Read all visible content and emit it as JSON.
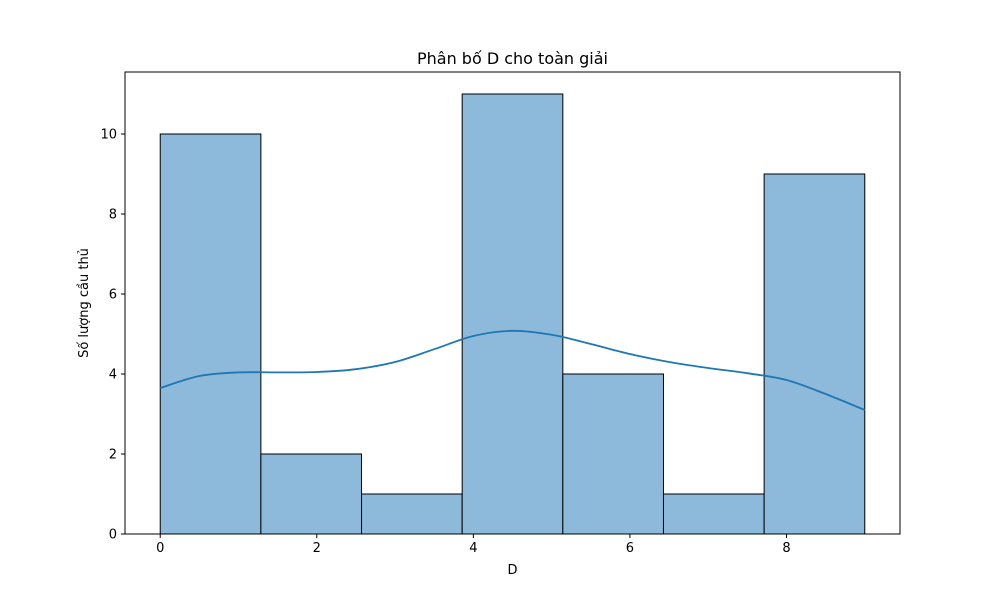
{
  "chart_data": {
    "type": "bar",
    "title": "Phân bố D cho toàn giải",
    "xlabel": "D",
    "ylabel": "Số lượng cầu thủ",
    "xlim": [
      -0.45,
      9.45
    ],
    "ylim": [
      0,
      11.55
    ],
    "xticks": [
      0,
      2,
      4,
      6,
      8
    ],
    "yticks": [
      0,
      2,
      4,
      6,
      8,
      10
    ],
    "bins": [
      {
        "x0": 0.0,
        "x1": 1.2857,
        "count": 10
      },
      {
        "x0": 1.2857,
        "x1": 2.5714,
        "count": 2
      },
      {
        "x0": 2.5714,
        "x1": 3.8571,
        "count": 1
      },
      {
        "x0": 3.8571,
        "x1": 5.1429,
        "count": 11
      },
      {
        "x0": 5.1429,
        "x1": 6.4286,
        "count": 4
      },
      {
        "x0": 6.4286,
        "x1": 7.7143,
        "count": 1
      },
      {
        "x0": 7.7143,
        "x1": 9.0,
        "count": 9
      }
    ],
    "kde": {
      "x": [
        0,
        0.5,
        1,
        1.5,
        2,
        2.5,
        3,
        3.5,
        4,
        4.5,
        5,
        5.5,
        6,
        6.5,
        7,
        7.5,
        8,
        8.5,
        9
      ],
      "y": [
        3.65,
        3.95,
        4.04,
        4.04,
        4.05,
        4.12,
        4.3,
        4.62,
        4.95,
        5.08,
        4.98,
        4.75,
        4.5,
        4.3,
        4.15,
        4.02,
        3.85,
        3.5,
        3.1
      ]
    },
    "grid": false,
    "colors": {
      "bar_fill": "#8db9db",
      "bar_edge": "#000000",
      "kde_line": "#1f77b4"
    }
  }
}
